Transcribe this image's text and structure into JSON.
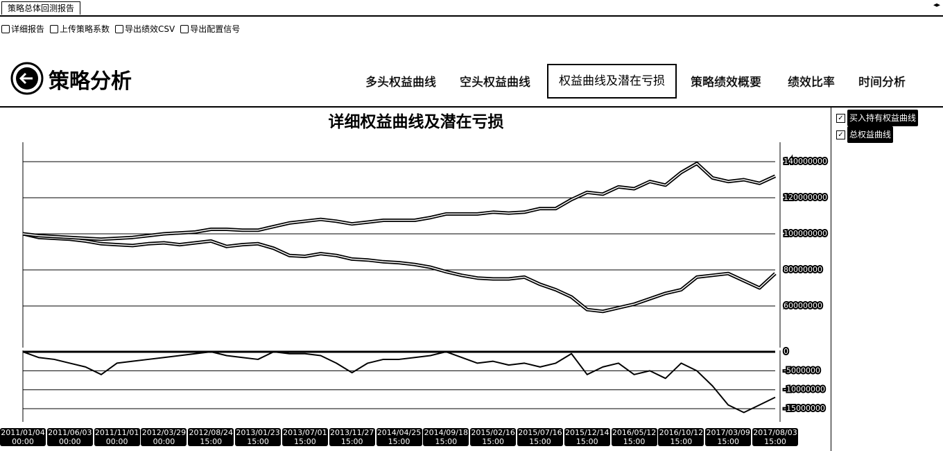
{
  "window": {
    "tab": "策略总体回测报告"
  },
  "toolbar": [
    "详细报告",
    "上传策略系数",
    "导出绩效CSV",
    "导出配置信号"
  ],
  "header": {
    "title": "策略分析"
  },
  "tabs": {
    "items": [
      "多头权益曲线",
      "空头权益曲线",
      "权益曲线及潜在亏损",
      "策略绩效概要",
      "绩效比率",
      "时间分析"
    ],
    "active": 2
  },
  "chart_data": [
    {
      "type": "line",
      "title": "详细权益曲线及潜在亏损",
      "categories": [
        "2011/01/04\n00:00",
        null,
        null,
        "2011/06/03\n00:00",
        null,
        null,
        "2011/11/01\n00:00",
        null,
        null,
        "2012/03/29\n00:00",
        null,
        null,
        "2012/08/24\n15:00",
        null,
        null,
        "2013/01/23\n15:00",
        null,
        null,
        "2013/07/01\n15:00",
        null,
        null,
        "2013/11/27\n15:00",
        null,
        null,
        "2014/04/25\n15:00",
        null,
        null,
        "2014/09/18\n15:00",
        null,
        null,
        "2015/02/16\n15:00",
        null,
        null,
        "2015/07/16\n15:00",
        null,
        null,
        "2015/12/14\n15:00",
        null,
        null,
        "2016/05/12\n15:00",
        null,
        null,
        "2016/10/12\n15:00",
        null,
        null,
        "2017/03/09\n15:00",
        null,
        null,
        "2017/08/03\n15:00"
      ],
      "series": [
        {
          "name": "买入持有权益曲线",
          "color": "#000000",
          "values": [
            100000000,
            98000000,
            97500000,
            97000000,
            96000000,
            94500000,
            94000000,
            93500000,
            94500000,
            95000000,
            94000000,
            95000000,
            96000000,
            93000000,
            94000000,
            94500000,
            92000000,
            88000000,
            87500000,
            89000000,
            88000000,
            86000000,
            85500000,
            84500000,
            84000000,
            83000000,
            81500000,
            79000000,
            77000000,
            75500000,
            75000000,
            75000000,
            76000000,
            72000000,
            69000000,
            65000000,
            58000000,
            57000000,
            59000000,
            61000000,
            64000000,
            67000000,
            69000000,
            76000000,
            77000000,
            78000000,
            74000000,
            70000000,
            78000000
          ]
        },
        {
          "name": "总权益曲线",
          "color": "#000000",
          "values": [
            100000000,
            99000000,
            98500000,
            98000000,
            97500000,
            97000000,
            97500000,
            98000000,
            99000000,
            100000000,
            100500000,
            101000000,
            102500000,
            102500000,
            102000000,
            102000000,
            104000000,
            106000000,
            107000000,
            108000000,
            107000000,
            105500000,
            106500000,
            107500000,
            107500000,
            107500000,
            109000000,
            111000000,
            111000000,
            111000000,
            112000000,
            111500000,
            112000000,
            114000000,
            114000000,
            119000000,
            123000000,
            122000000,
            126000000,
            125000000,
            129000000,
            127000000,
            134000000,
            139000000,
            131000000,
            129000000,
            130000000,
            128000000,
            132000000
          ]
        }
      ],
      "ylim": [
        40000000,
        150000000
      ],
      "yticks": [
        60000000,
        80000000,
        100000000,
        120000000,
        140000000
      ],
      "grid": true
    },
    {
      "type": "line",
      "series": [
        {
          "color": "#000000",
          "values": [
            0,
            -1500000,
            -2000000,
            -3000000,
            -4000000,
            -6000000,
            -3000000,
            -2500000,
            -2000000,
            -1500000,
            -1000000,
            -500000,
            0,
            -1000000,
            -1500000,
            -2000000,
            0,
            -500000,
            -500000,
            -1000000,
            -3000000,
            -5500000,
            -3000000,
            -2000000,
            -2000000,
            -1500000,
            -1000000,
            0,
            -1500000,
            -3000000,
            -2500000,
            -3500000,
            -3000000,
            -4000000,
            -3000000,
            -500000,
            -6000000,
            -4000000,
            -3000000,
            -6000000,
            -5000000,
            -7000000,
            -3000000,
            -5000000,
            -9000000,
            -14000000,
            -16000000,
            -14000000,
            -12000000
          ]
        }
      ],
      "ylim": [
        -17000000,
        0
      ],
      "yticks": [
        -15000000,
        -10000000,
        -5000000,
        0
      ],
      "grid": true
    }
  ]
}
